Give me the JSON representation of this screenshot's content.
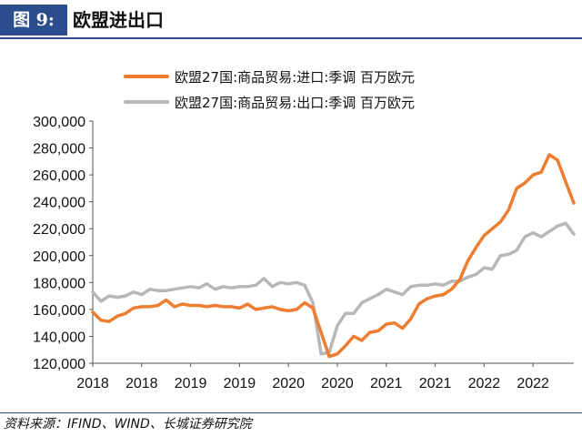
{
  "header": {
    "figure_tag": "图 9:",
    "title": "欧盟进出口",
    "accent_color": "#2b4d8c"
  },
  "footer": {
    "source": "资料来源：IFIND、WIND、长城证券研究院"
  },
  "chart_data": {
    "type": "line",
    "title": "",
    "xlabel": "",
    "ylabel": "",
    "ylim": [
      120000,
      300000
    ],
    "yticks": [
      120000,
      140000,
      160000,
      180000,
      200000,
      220000,
      240000,
      260000,
      280000,
      300000
    ],
    "ytick_labels": [
      "120,000",
      "140,000",
      "160,000",
      "180,000",
      "200,000",
      "220,000",
      "240,000",
      "260,000",
      "280,000",
      "300,000"
    ],
    "x_start": "2018-01",
    "x_end": "2022-12",
    "xticks": [
      "2018-01",
      "2018-07",
      "2019-01",
      "2019-07",
      "2020-01",
      "2020-07",
      "2021-01",
      "2021-07",
      "2022-01",
      "2022-07"
    ],
    "xtick_labels": [
      "2018",
      "2018",
      "2019",
      "2019",
      "2020",
      "2020",
      "2021",
      "2021",
      "2022",
      "2022"
    ],
    "legend_position": "top",
    "grid": false,
    "x": [
      "2018-01",
      "2018-02",
      "2018-03",
      "2018-04",
      "2018-05",
      "2018-06",
      "2018-07",
      "2018-08",
      "2018-09",
      "2018-10",
      "2018-11",
      "2018-12",
      "2019-01",
      "2019-02",
      "2019-03",
      "2019-04",
      "2019-05",
      "2019-06",
      "2019-07",
      "2019-08",
      "2019-09",
      "2019-10",
      "2019-11",
      "2019-12",
      "2020-01",
      "2020-02",
      "2020-03",
      "2020-04",
      "2020-05",
      "2020-06",
      "2020-07",
      "2020-08",
      "2020-09",
      "2020-10",
      "2020-11",
      "2020-12",
      "2021-01",
      "2021-02",
      "2021-03",
      "2021-04",
      "2021-05",
      "2021-06",
      "2021-07",
      "2021-08",
      "2021-09",
      "2021-10",
      "2021-11",
      "2021-12",
      "2022-01",
      "2022-02",
      "2022-03",
      "2022-04",
      "2022-05",
      "2022-06",
      "2022-07",
      "2022-08",
      "2022-09",
      "2022-10",
      "2022-11",
      "2022-12"
    ],
    "series": [
      {
        "name": "欧盟27国:商品贸易:进口:季调 百万欧元",
        "color": "#ed7d31",
        "values": [
          158000,
          152000,
          151000,
          155000,
          157000,
          161000,
          162000,
          162000,
          163000,
          167000,
          162000,
          164000,
          163000,
          163000,
          162000,
          163000,
          162000,
          162000,
          161000,
          164000,
          160000,
          161000,
          162000,
          160000,
          159000,
          160000,
          165000,
          161000,
          143000,
          125000,
          127000,
          133000,
          140000,
          137000,
          143000,
          144000,
          149000,
          150000,
          146000,
          153000,
          164000,
          168000,
          170000,
          171000,
          175000,
          182000,
          196000,
          206000,
          215000,
          220000,
          225000,
          234000,
          250000,
          254000,
          260000,
          262000,
          275000,
          271000,
          255000,
          239000
        ]
      },
      {
        "name": "欧盟27国:商品贸易:出口:季调 百万欧元",
        "color": "#b7b7b7",
        "values": [
          173000,
          166000,
          170000,
          169000,
          170000,
          173000,
          171000,
          175000,
          174000,
          174000,
          175000,
          176000,
          177000,
          176000,
          179000,
          175000,
          177000,
          176000,
          177000,
          177000,
          178000,
          183000,
          177000,
          180000,
          179000,
          180000,
          178000,
          165000,
          127000,
          128000,
          148000,
          157000,
          157000,
          165000,
          168000,
          171000,
          175000,
          173000,
          171000,
          177000,
          178000,
          178000,
          179000,
          178000,
          181000,
          181000,
          184000,
          186000,
          191000,
          190000,
          200000,
          201000,
          204000,
          214000,
          217000,
          214000,
          218000,
          222000,
          224000,
          216000
        ]
      }
    ]
  }
}
